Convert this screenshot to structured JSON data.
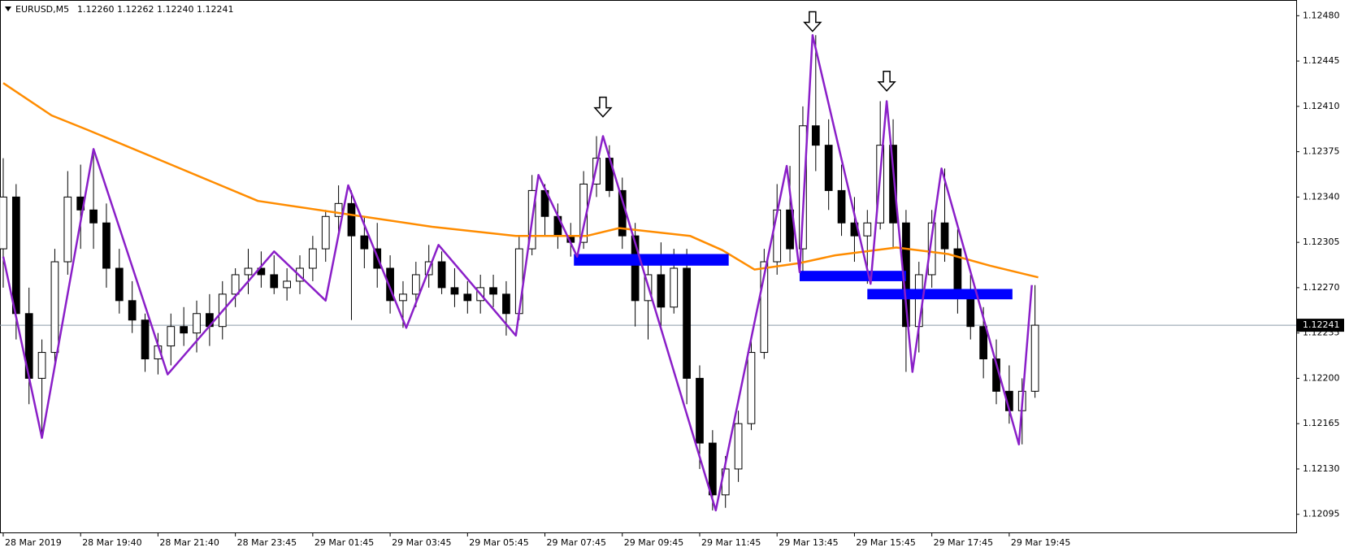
{
  "chart_data": {
    "type": "candlestick",
    "title": "EURUSD,M5",
    "quote": "1.12260 1.12262 1.12240 1.12241",
    "xlim": [
      -1,
      401
    ],
    "ylim": [
      1.12081,
      1.12489
    ],
    "xticks": [
      {
        "value": 0,
        "label": "28 Mar 2019"
      },
      {
        "value": 24,
        "label": "28 Mar 19:40"
      },
      {
        "value": 48,
        "label": "28 Mar 21:40"
      },
      {
        "value": 72,
        "label": "28 Mar 23:45"
      },
      {
        "value": 96,
        "label": "29 Mar 01:45"
      },
      {
        "value": 120,
        "label": "29 Mar 03:45"
      },
      {
        "value": 144,
        "label": "29 Mar 05:45"
      },
      {
        "value": 168,
        "label": "29 Mar 07:45"
      },
      {
        "value": 192,
        "label": "29 Mar 09:45"
      },
      {
        "value": 216,
        "label": "29 Mar 11:45"
      },
      {
        "value": 240,
        "label": "29 Mar 13:45"
      },
      {
        "value": 264,
        "label": "29 Mar 15:45"
      },
      {
        "value": 288,
        "label": "29 Mar 17:45"
      },
      {
        "value": 312,
        "label": "29 Mar 19:45"
      }
    ],
    "yticks": [
      1.12095,
      {
        "value": 1.1213,
        "label": "1.12130"
      },
      1.12165,
      {
        "value": 1.122,
        "label": "1.12200"
      },
      1.12235,
      {
        "value": 1.1227,
        "label": "1.12270"
      },
      1.12305,
      {
        "value": 1.1234,
        "label": "1.12340"
      },
      1.12375,
      {
        "value": 1.1241,
        "label": "1.12410"
      },
      1.12445,
      {
        "value": 1.1248,
        "label": "1.12480"
      }
    ],
    "current_price": 1.12241,
    "candles": {
      "x": [
        0,
        4,
        8,
        12,
        16,
        20,
        24,
        28,
        32,
        36,
        40,
        44,
        48,
        52,
        56,
        60,
        64,
        68,
        72,
        76,
        80,
        84,
        88,
        92,
        96,
        100,
        104,
        108,
        112,
        116,
        120,
        124,
        128,
        132,
        136,
        140,
        144,
        148,
        152,
        156,
        160,
        164,
        168,
        172,
        176,
        180,
        184,
        188,
        192,
        196,
        200,
        204,
        208,
        212,
        216,
        220,
        224,
        228,
        232,
        236,
        240,
        244,
        248,
        252,
        256,
        260,
        264,
        268,
        272,
        276,
        280,
        284,
        288,
        292,
        296,
        300,
        304,
        308,
        312,
        316,
        320
      ],
      "ohlc": [
        [
          1.123,
          1.1237,
          1.1227,
          1.1234
        ],
        [
          1.1234,
          1.1235,
          1.1223,
          1.1225
        ],
        [
          1.1225,
          1.1227,
          1.1218,
          1.122
        ],
        [
          1.122,
          1.1223,
          1.12154,
          1.1222
        ],
        [
          1.1222,
          1.123,
          1.1221,
          1.1229
        ],
        [
          1.1229,
          1.1236,
          1.1228,
          1.1234
        ],
        [
          1.1234,
          1.12365,
          1.123,
          1.1233
        ],
        [
          1.1233,
          1.12377,
          1.123,
          1.1232
        ],
        [
          1.1232,
          1.12335,
          1.1227,
          1.12285
        ],
        [
          1.12285,
          1.123,
          1.1225,
          1.1226
        ],
        [
          1.1226,
          1.12275,
          1.12235,
          1.12245
        ],
        [
          1.12245,
          1.1225,
          1.12205,
          1.12215
        ],
        [
          1.12215,
          1.12235,
          1.12203,
          1.12225
        ],
        [
          1.12225,
          1.1225,
          1.1221,
          1.1224
        ],
        [
          1.1224,
          1.12255,
          1.12225,
          1.12235
        ],
        [
          1.12235,
          1.1226,
          1.1222,
          1.1225
        ],
        [
          1.1225,
          1.12265,
          1.12225,
          1.1224
        ],
        [
          1.1224,
          1.12275,
          1.1223,
          1.12265
        ],
        [
          1.12265,
          1.12285,
          1.12255,
          1.1228
        ],
        [
          1.1228,
          1.123,
          1.12265,
          1.12285
        ],
        [
          1.12285,
          1.12298,
          1.1227,
          1.1228
        ],
        [
          1.1228,
          1.12295,
          1.12265,
          1.1227
        ],
        [
          1.1227,
          1.12285,
          1.1226,
          1.12275
        ],
        [
          1.12275,
          1.12295,
          1.12265,
          1.12285
        ],
        [
          1.12285,
          1.1231,
          1.12275,
          1.123
        ],
        [
          1.123,
          1.1233,
          1.1229,
          1.12325
        ],
        [
          1.12325,
          1.12349,
          1.1231,
          1.12335
        ],
        [
          1.12335,
          1.12345,
          1.12245,
          1.1231
        ],
        [
          1.1231,
          1.12325,
          1.12285,
          1.123
        ],
        [
          1.123,
          1.1232,
          1.1227,
          1.12285
        ],
        [
          1.12285,
          1.12295,
          1.1225,
          1.1226
        ],
        [
          1.1226,
          1.12275,
          1.12239,
          1.12265
        ],
        [
          1.12265,
          1.1229,
          1.12255,
          1.1228
        ],
        [
          1.1228,
          1.12303,
          1.1227,
          1.1229
        ],
        [
          1.1229,
          1.12298,
          1.12265,
          1.1227
        ],
        [
          1.1227,
          1.12285,
          1.12255,
          1.12265
        ],
        [
          1.12265,
          1.12275,
          1.1225,
          1.1226
        ],
        [
          1.1226,
          1.1228,
          1.1225,
          1.1227
        ],
        [
          1.1227,
          1.1228,
          1.12255,
          1.12265
        ],
        [
          1.12265,
          1.12275,
          1.12233,
          1.1225
        ],
        [
          1.1225,
          1.1231,
          1.12245,
          1.123
        ],
        [
          1.123,
          1.12357,
          1.12295,
          1.12345
        ],
        [
          1.12345,
          1.1235,
          1.1231,
          1.12325
        ],
        [
          1.12325,
          1.12335,
          1.123,
          1.1231
        ],
        [
          1.1231,
          1.1232,
          1.12294,
          1.12305
        ],
        [
          1.12305,
          1.1236,
          1.123,
          1.1235
        ],
        [
          1.1235,
          1.12387,
          1.1234,
          1.1237
        ],
        [
          1.1237,
          1.1238,
          1.1234,
          1.12345
        ],
        [
          1.12345,
          1.12355,
          1.123,
          1.1231
        ],
        [
          1.1231,
          1.1232,
          1.1224,
          1.1226
        ],
        [
          1.1226,
          1.1229,
          1.1223,
          1.1228
        ],
        [
          1.1228,
          1.12305,
          1.1224,
          1.12255
        ],
        [
          1.12255,
          1.123,
          1.1225,
          1.12285
        ],
        [
          1.12285,
          1.123,
          1.1218,
          1.122
        ],
        [
          1.122,
          1.1221,
          1.1213,
          1.1215
        ],
        [
          1.1215,
          1.1216,
          1.12098,
          1.1211
        ],
        [
          1.1211,
          1.1214,
          1.121,
          1.1213
        ],
        [
          1.1213,
          1.12175,
          1.1212,
          1.12165
        ],
        [
          1.12165,
          1.1223,
          1.1216,
          1.1222
        ],
        [
          1.1222,
          1.123,
          1.12215,
          1.1229
        ],
        [
          1.1229,
          1.1235,
          1.1228,
          1.1233
        ],
        [
          1.1233,
          1.12364,
          1.1229,
          1.123
        ],
        [
          1.123,
          1.1241,
          1.12282,
          1.12395
        ],
        [
          1.12395,
          1.12465,
          1.1236,
          1.1238
        ],
        [
          1.1238,
          1.124,
          1.1233,
          1.12345
        ],
        [
          1.12345,
          1.12365,
          1.1231,
          1.1232
        ],
        [
          1.1232,
          1.1234,
          1.1229,
          1.1231
        ],
        [
          1.1231,
          1.1233,
          1.12273,
          1.1232
        ],
        [
          1.1232,
          1.12414,
          1.12315,
          1.1238
        ],
        [
          1.1238,
          1.124,
          1.123,
          1.1232
        ],
        [
          1.1232,
          1.1233,
          1.12205,
          1.1224
        ],
        [
          1.1224,
          1.1229,
          1.1222,
          1.1228
        ],
        [
          1.1228,
          1.1233,
          1.1227,
          1.1232
        ],
        [
          1.1232,
          1.12362,
          1.1229,
          1.123
        ],
        [
          1.123,
          1.12315,
          1.1225,
          1.12265
        ],
        [
          1.12265,
          1.1228,
          1.1223,
          1.1224
        ],
        [
          1.1224,
          1.12255,
          1.122,
          1.12215
        ],
        [
          1.12215,
          1.1223,
          1.1218,
          1.1219
        ],
        [
          1.1219,
          1.1221,
          1.12165,
          1.12175
        ],
        [
          1.12175,
          1.122,
          1.12149,
          1.1219
        ],
        [
          1.1219,
          1.12272,
          1.12185,
          1.12241
        ]
      ]
    },
    "moving_average": {
      "color": "#ff8c00",
      "x": [
        0,
        15,
        26,
        53,
        79,
        106,
        133,
        159,
        181,
        191,
        213,
        223,
        233,
        247,
        258,
        277,
        293,
        306,
        321
      ],
      "y": [
        1.12428,
        1.12403,
        1.12392,
        1.12364,
        1.12337,
        1.12327,
        1.12317,
        1.1231,
        1.1231,
        1.12316,
        1.1231,
        1.12299,
        1.12284,
        1.12289,
        1.12295,
        1.12301,
        1.12296,
        1.12287,
        1.12278
      ]
    },
    "zigzag": {
      "color": "#8a1fc8",
      "x": [
        0,
        12,
        28,
        51,
        84,
        100,
        107,
        125,
        135,
        159,
        166,
        178,
        186,
        221,
        243,
        247,
        251,
        269,
        274,
        282,
        291,
        315,
        319
      ],
      "y": [
        1.12294,
        1.12154,
        1.12377,
        1.12203,
        1.12298,
        1.1226,
        1.12349,
        1.12239,
        1.12303,
        1.12233,
        1.12357,
        1.12294,
        1.12387,
        1.12098,
        1.12364,
        1.12282,
        1.12465,
        1.12273,
        1.12414,
        1.12205,
        1.12362,
        1.12149,
        1.12272
      ]
    },
    "zones": {
      "color": "#0000ff",
      "items": [
        {
          "x": [
            177,
            225
          ],
          "y": [
            1.12287,
            1.12296
          ]
        },
        {
          "x": [
            247,
            280
          ],
          "y": [
            1.12275,
            1.12283
          ]
        },
        {
          "x": [
            268,
            313
          ],
          "y": [
            1.12261,
            1.12269
          ]
        }
      ]
    },
    "arrows": [
      {
        "x": 186,
        "y": 1.12402
      },
      {
        "x": 251,
        "y": 1.12468
      },
      {
        "x": 274,
        "y": 1.12422
      }
    ]
  }
}
